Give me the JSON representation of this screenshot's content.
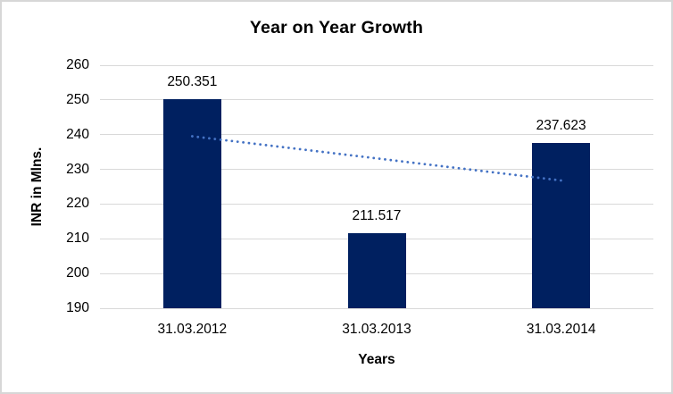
{
  "window": {
    "background_color": "#ffffff",
    "border_color": "#d7d7d7"
  },
  "chart_data": {
    "type": "bar",
    "title": "Year on Year Growth",
    "xlabel": "Years",
    "ylabel": "INR in Mlns.",
    "categories": [
      "31.03.2012",
      "31.03.2013",
      "31.03.2014"
    ],
    "values": [
      250.351,
      211.517,
      237.623
    ],
    "data_labels": [
      "250.351",
      "211.517",
      "237.623"
    ],
    "ylim": [
      190,
      260
    ],
    "ytick_step": 10,
    "yticks": [
      190,
      200,
      210,
      220,
      230,
      240,
      250,
      260
    ],
    "grid": true,
    "legend": false,
    "bar_color": "#002060",
    "gridline_color": "#d9d9d9",
    "text_color": "#000000",
    "trendline": {
      "type": "linear",
      "style": "dotted",
      "color": "#4472c4",
      "values": [
        239.53,
        233.16,
        226.8
      ]
    }
  }
}
